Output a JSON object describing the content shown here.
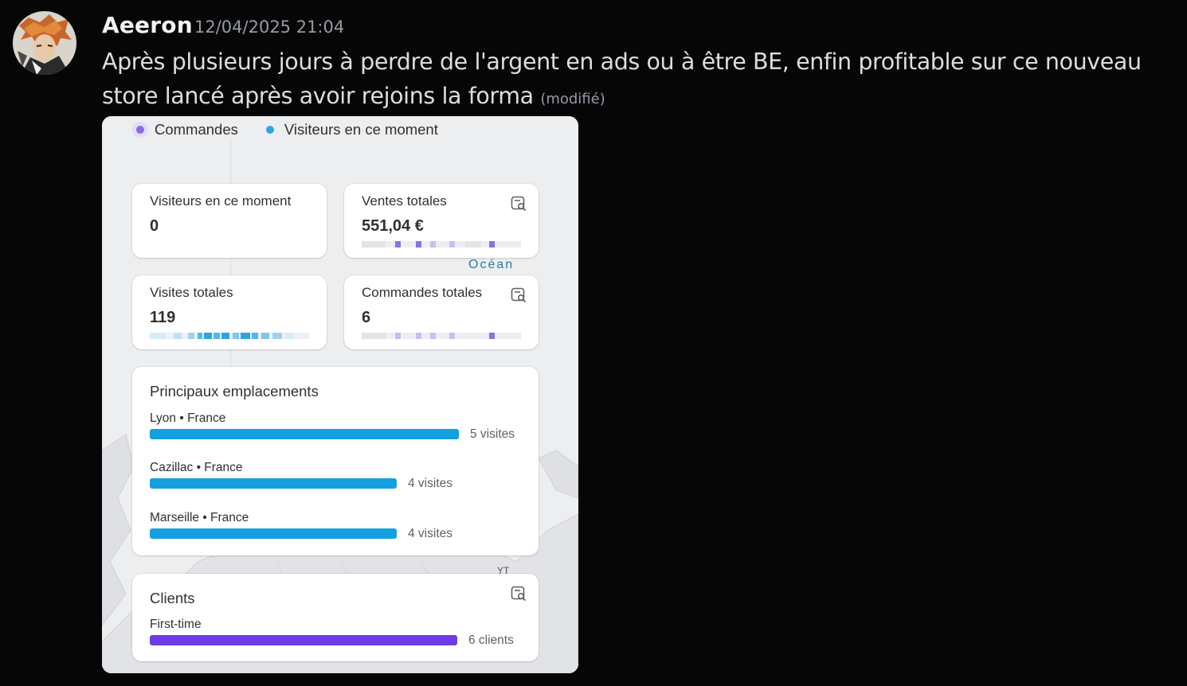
{
  "message": {
    "author": "Aeeron",
    "timestamp": "12/04/2025 21:04",
    "text": "Après plusieurs jours à perdre de l'argent en ads ou à être BE, enfin profitable sur ce nouveau store lancé après avoir rejoins la forma",
    "edited_label": "(modifié)"
  },
  "screenshot": {
    "legend": [
      {
        "label": "Commandes",
        "color": "#8a6ce0"
      },
      {
        "label": "Visiteurs en ce moment",
        "color": "#2aa8e8"
      }
    ],
    "map_label_ocean": "Océan",
    "map_label_yt": "YT",
    "cards": {
      "visitors_now": {
        "label": "Visiteurs en ce moment",
        "value": "0"
      },
      "total_sales": {
        "label": "Ventes totales",
        "value": "551,04 €",
        "icon": "report-search-icon"
      },
      "total_visits": {
        "label": "Visites totales",
        "value": "119"
      },
      "total_orders": {
        "label": "Commandes totales",
        "value": "6",
        "icon": "report-search-icon"
      }
    },
    "locations": {
      "title": "Principaux emplacements",
      "items": [
        {
          "name": "Lyon • France",
          "value": "5 visites",
          "count": 5
        },
        {
          "name": "Cazillac • France",
          "value": "4 visites",
          "count": 4
        },
        {
          "name": "Marseille • France",
          "value": "4 visites",
          "count": 4
        }
      ],
      "bar_color": "#14a0e0"
    },
    "clients": {
      "title": "Clients",
      "icon": "report-search-icon",
      "items": [
        {
          "name": "First-time",
          "value": "6 clients",
          "count": 6
        }
      ],
      "bar_color": "#6c3ce6"
    }
  }
}
